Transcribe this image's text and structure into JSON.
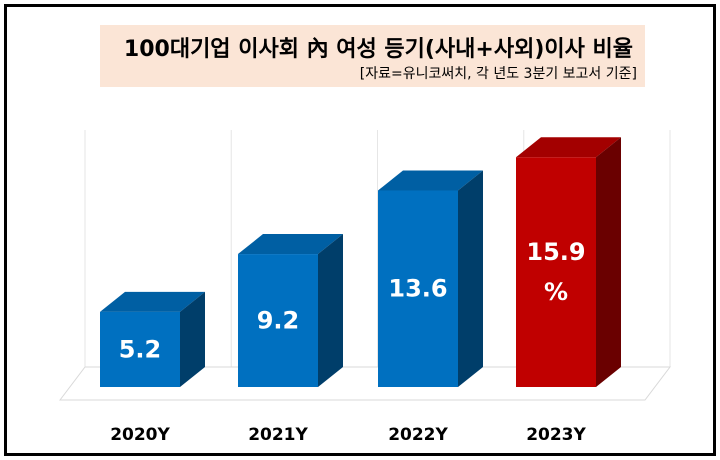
{
  "chart_data": {
    "type": "bar",
    "title": "100대기업 이사회 內 여성 등기(사내+사외)이사 비율",
    "subtitle": "[자료=유니코써치, 각 년도 3분기 보고서 기준]",
    "categories": [
      "2020Y",
      "2021Y",
      "2022Y",
      "2023Y"
    ],
    "values": [
      5.2,
      9.2,
      13.6,
      15.9
    ],
    "data_labels": [
      "5.2",
      "9.2",
      "13.6",
      "15.9\n%"
    ],
    "unit": "%",
    "colors": [
      "#0070c0",
      "#0070c0",
      "#0070c0",
      "#c00000"
    ],
    "style": "3d-column",
    "grid": true,
    "legend": "none"
  }
}
